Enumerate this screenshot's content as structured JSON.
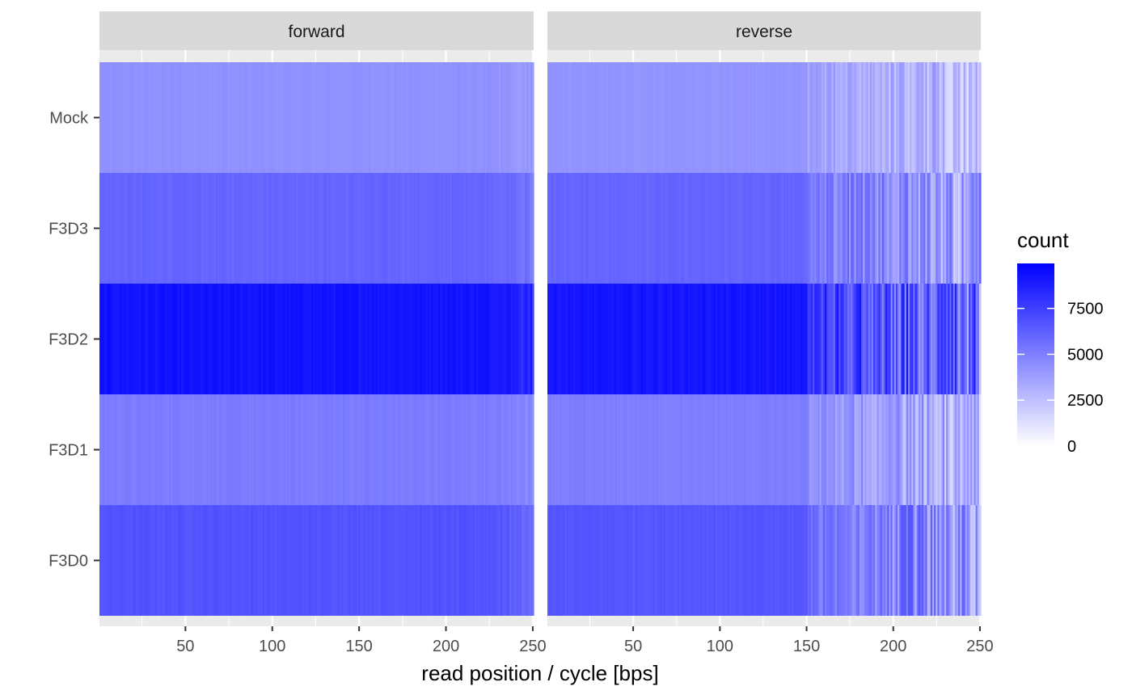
{
  "chart_data": {
    "type": "heatmap",
    "facets": [
      "forward",
      "reverse"
    ],
    "samples": [
      "Mock",
      "F3D3",
      "F3D2",
      "F3D1",
      "F3D0"
    ],
    "xlabel": "read position / cycle [bps]",
    "ylabel": "",
    "xlim": [
      1,
      250
    ],
    "x_ticks": [
      50,
      100,
      150,
      200,
      250
    ],
    "x_tick_labels": [
      "50",
      "100",
      "150",
      "200",
      "250"
    ],
    "legend": {
      "title": "count",
      "placement": "right",
      "ticks": [
        0,
        2500,
        5000,
        7500
      ],
      "tick_labels": [
        "0",
        "2500",
        "5000",
        "7500"
      ],
      "max": 9950
    },
    "colors": {
      "low": "#ffffff",
      "high": "#0000ff"
    },
    "grid": true,
    "approx_counts": {
      "forward": {
        "Mock": 4300,
        "F3D3": 6000,
        "F3D2": 9200,
        "F3D1": 5100,
        "F3D0": 6700
      },
      "reverse": {
        "Mock": 4200,
        "F3D3": 6000,
        "F3D2": 9100,
        "F3D1": 5000,
        "F3D0": 6600
      }
    },
    "reverse_dropoff_start": 150
  }
}
